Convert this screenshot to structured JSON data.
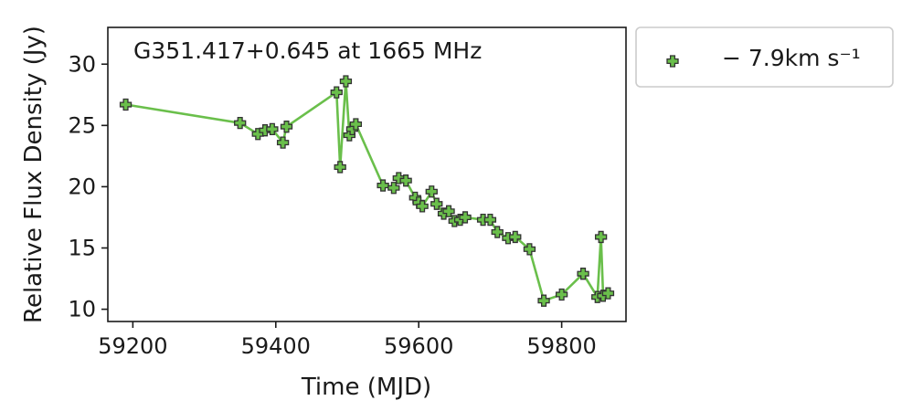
{
  "chart_data": {
    "type": "line",
    "annotation": "G351.417+0.645 at 1665 MHz",
    "xlabel": "Time (MJD)",
    "ylabel": "Relative Flux Density (Jy)",
    "xlim": [
      59165,
      59890
    ],
    "ylim": [
      9,
      33
    ],
    "xticks": [
      59200,
      59400,
      59600,
      59800
    ],
    "yticks": [
      10,
      15,
      20,
      25,
      30
    ],
    "grid": false,
    "legend_position": "outside-right",
    "series": [
      {
        "name": "− 7.9km s⁻¹",
        "line_color": "#6abf4b",
        "marker": "plus-filled",
        "marker_fill": "#6abf4b",
        "marker_edge": "#333333",
        "x": [
          59190,
          59350,
          59375,
          59385,
          59395,
          59410,
          59415,
          59485,
          59490,
          59498,
          59503,
          59507,
          59512,
          59550,
          59565,
          59572,
          59582,
          59595,
          59600,
          59605,
          59618,
          59625,
          59635,
          59642,
          59650,
          59658,
          59665,
          59690,
          59700,
          59710,
          59725,
          59735,
          59755,
          59775,
          59800,
          59830,
          59850,
          59855,
          59858,
          59865
        ],
        "y": [
          26.7,
          25.2,
          24.3,
          24.6,
          24.7,
          23.6,
          24.9,
          27.7,
          21.6,
          28.6,
          24.2,
          24.7,
          25.1,
          20.1,
          19.9,
          20.7,
          20.5,
          19.1,
          18.7,
          18.4,
          19.6,
          18.6,
          17.8,
          18.0,
          17.2,
          17.3,
          17.5,
          17.3,
          17.3,
          16.3,
          15.8,
          15.9,
          14.9,
          10.7,
          11.2,
          12.9,
          11.0,
          15.9,
          11.1,
          11.3
        ]
      }
    ]
  }
}
